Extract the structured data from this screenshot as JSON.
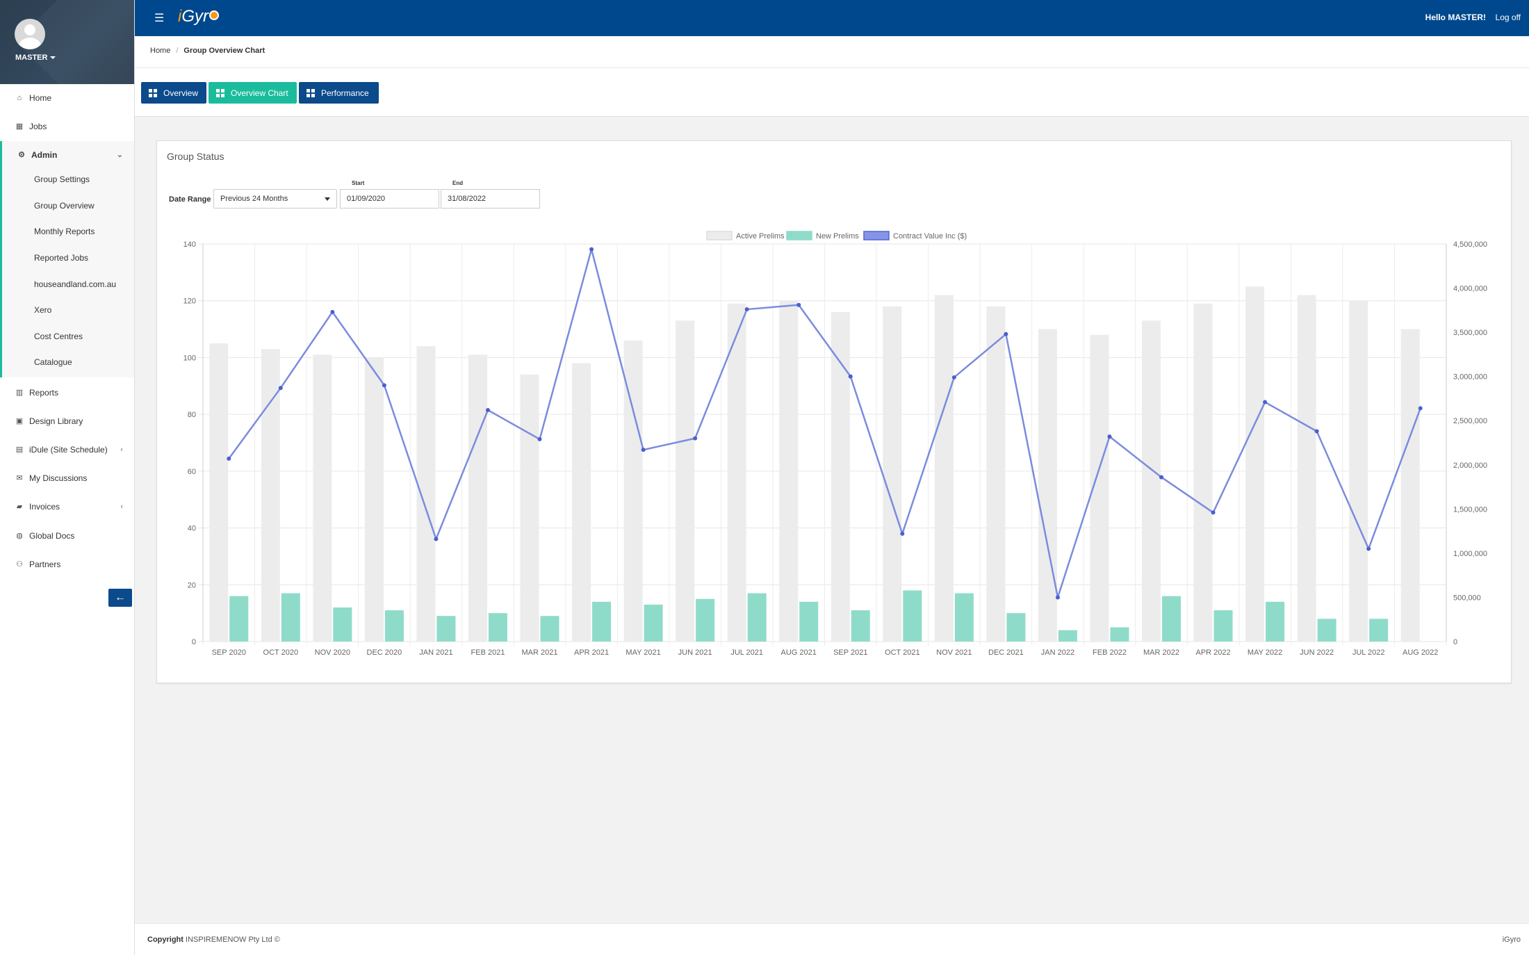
{
  "app": {
    "brand": "iGyro",
    "greeting": "Hello MASTER!",
    "logoff": "Log off"
  },
  "user": {
    "name": "MASTER"
  },
  "sidebar": {
    "items": [
      {
        "label": "Home",
        "icon": "home-icon"
      },
      {
        "label": "Jobs",
        "icon": "grid-icon"
      },
      {
        "label": "Admin",
        "icon": "gear-icon"
      },
      {
        "label": "Reports",
        "icon": "bar-chart-icon"
      },
      {
        "label": "Design Library",
        "icon": "library-icon"
      },
      {
        "label": "iDule (Site Schedule)",
        "icon": "calendar-icon"
      },
      {
        "label": "My Discussions",
        "icon": "envelope-icon"
      },
      {
        "label": "Invoices",
        "icon": "folder-icon"
      },
      {
        "label": "Global Docs",
        "icon": "globe-icon"
      },
      {
        "label": "Partners",
        "icon": "users-icon"
      }
    ],
    "admin_sub": [
      "Group Settings",
      "Group Overview",
      "Monthly Reports",
      "Reported Jobs",
      "houseandland.com.au",
      "Xero",
      "Cost Centres",
      "Catalogue"
    ]
  },
  "breadcrumb": {
    "home": "Home",
    "current": "Group Overview Chart"
  },
  "tabs": [
    {
      "label": "Overview",
      "color": "#0b4a8b"
    },
    {
      "label": "Overview Chart",
      "color": "#1abc9c"
    },
    {
      "label": "Performance",
      "color": "#0b4a8b"
    }
  ],
  "panel": {
    "title": "Group Status",
    "date_range_label": "Date Range",
    "date_range_value": "Previous 24 Months",
    "start_label": "Start",
    "start_value": "01/09/2020",
    "end_label": "End",
    "end_value": "31/08/2022"
  },
  "chart_data": {
    "type": "bar",
    "categories": [
      "SEP 2020",
      "OCT 2020",
      "NOV 2020",
      "DEC 2020",
      "JAN 2021",
      "FEB 2021",
      "MAR 2021",
      "APR 2021",
      "MAY 2021",
      "JUN 2021",
      "JUL 2021",
      "AUG 2021",
      "SEP 2021",
      "OCT 2021",
      "NOV 2021",
      "DEC 2021",
      "JAN 2022",
      "FEB 2022",
      "MAR 2022",
      "APR 2022",
      "MAY 2022",
      "JUN 2022",
      "JUL 2022",
      "AUG 2022"
    ],
    "series": [
      {
        "name": "Active Prelims",
        "kind": "bar",
        "axis": "left",
        "color": "#ececec",
        "values": [
          105,
          103,
          101,
          100,
          104,
          101,
          94,
          98,
          106,
          113,
          119,
          120,
          116,
          118,
          122,
          118,
          110,
          108,
          113,
          119,
          125,
          122,
          120,
          110
        ]
      },
      {
        "name": "New Prelims",
        "kind": "bar",
        "axis": "left",
        "color": "#8fdbc9",
        "values": [
          16,
          17,
          12,
          11,
          9,
          10,
          9,
          14,
          13,
          15,
          17,
          14,
          11,
          18,
          17,
          10,
          4,
          5,
          16,
          11,
          14,
          8,
          8,
          0
        ]
      },
      {
        "name": "Contract Value Inc ($)",
        "kind": "line",
        "axis": "right",
        "color": "#7b8bde",
        "values": [
          2070000,
          2870000,
          3730000,
          2900000,
          1160000,
          2620000,
          2290000,
          4440000,
          2170000,
          2300000,
          3760000,
          3810000,
          3000000,
          1220000,
          2990000,
          3480000,
          500000,
          2320000,
          1860000,
          1460000,
          2710000,
          2380000,
          1050000,
          2640000
        ]
      }
    ],
    "ylim_left": [
      0,
      140
    ],
    "yticks_left": [
      0,
      20,
      40,
      60,
      80,
      100,
      120,
      140
    ],
    "ylim_right": [
      0,
      4500000
    ],
    "yticks_right": [
      "0",
      "500,000",
      "1,000,000",
      "1,500,000",
      "2,000,000",
      "2,500,000",
      "3,000,000",
      "3,500,000",
      "4,000,000",
      "4,500,000"
    ],
    "legend": "top-center",
    "grid": true
  },
  "footer": {
    "copyright_label": "Copyright",
    "company": "INSPIREMENOW Pty Ltd ©",
    "right": "iGyro"
  }
}
